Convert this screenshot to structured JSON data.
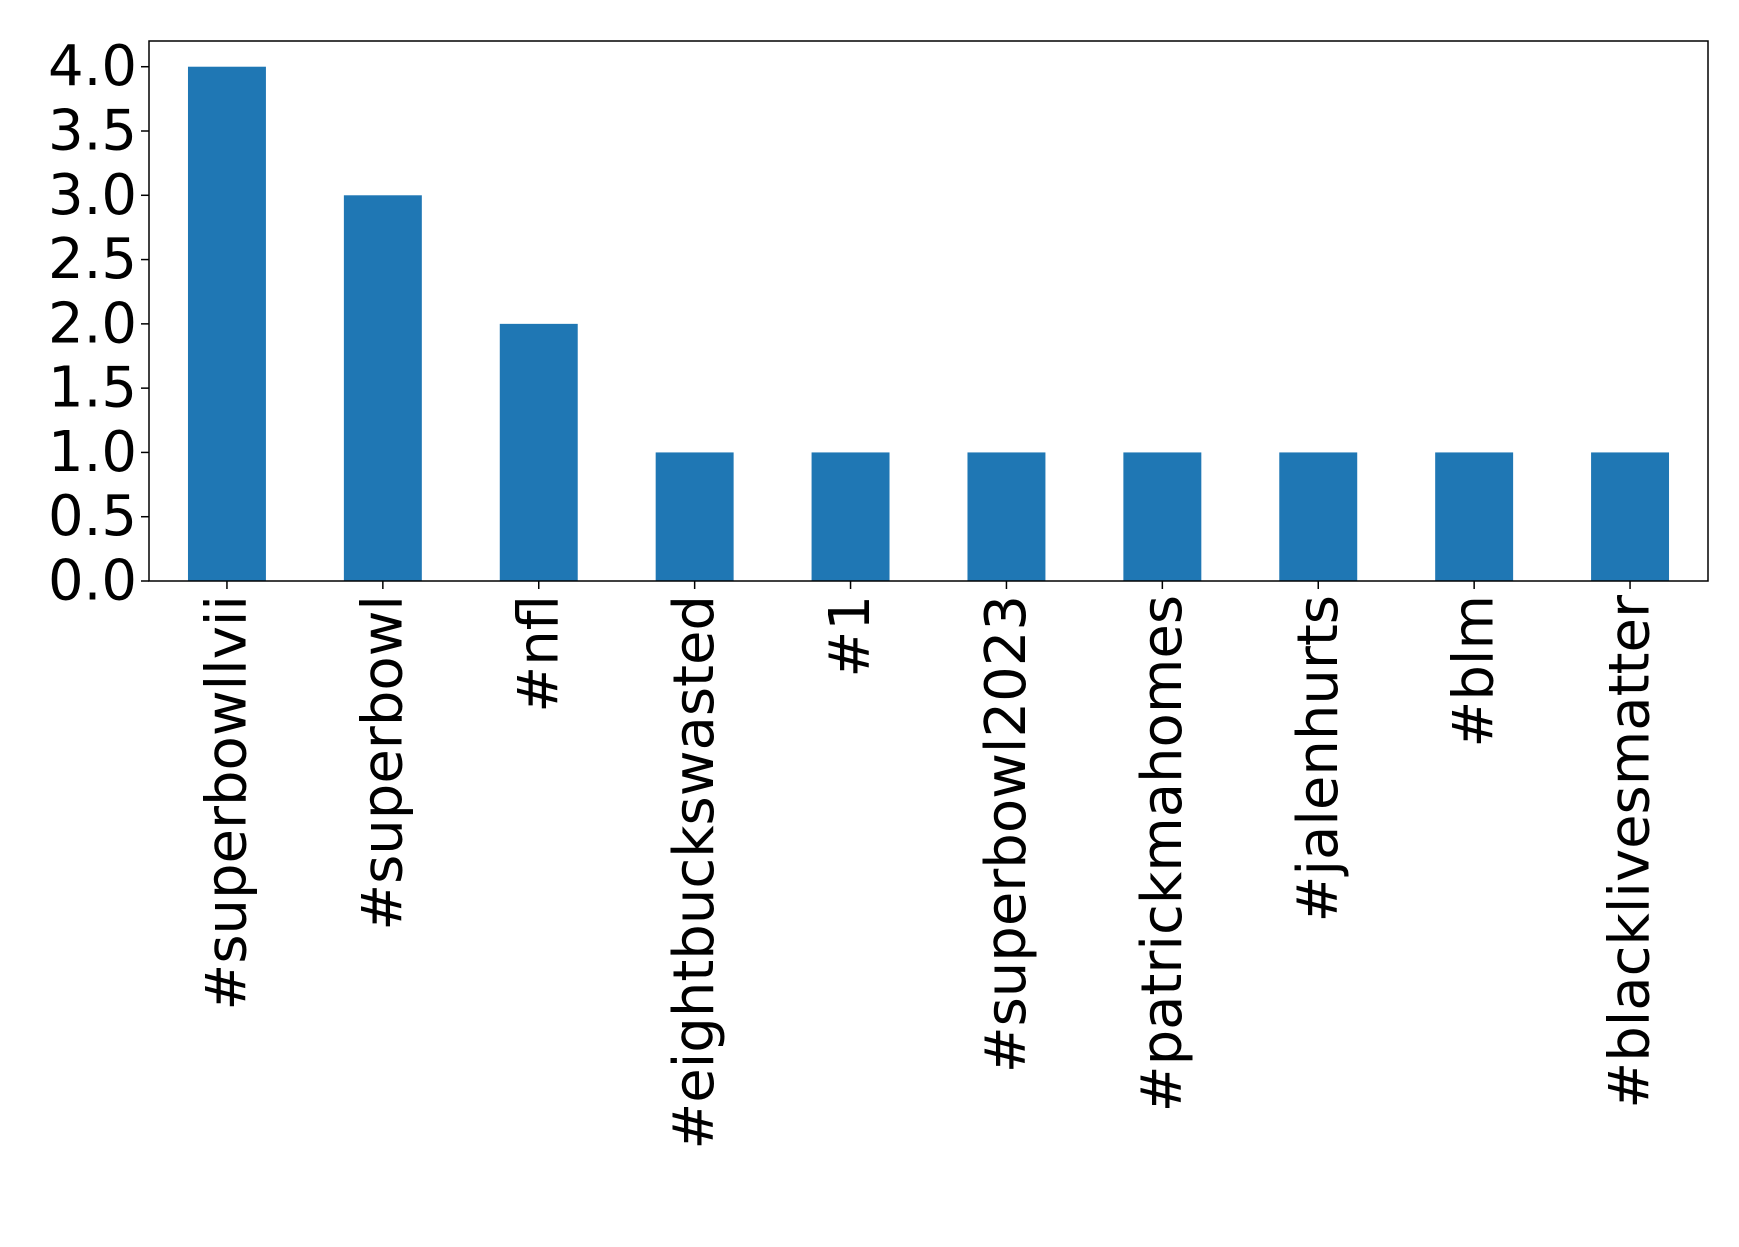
{
  "chart_data": {
    "type": "bar",
    "categories": [
      "#superbowllvii",
      "#superbowl",
      "#nfl",
      "#eightbuckswasted",
      "#1",
      "#superbowl2023",
      "#patrickmahomes",
      "#jalenhurts",
      "#blm",
      "#blacklivesmatter"
    ],
    "values": [
      4,
      3,
      2,
      1,
      1,
      1,
      1,
      1,
      1,
      1
    ],
    "color": "#1f77b4",
    "ylim": [
      0,
      4.2
    ],
    "yticks": [
      {
        "value": 0,
        "label": "0.0"
      },
      {
        "value": 0.5,
        "label": "0.5"
      },
      {
        "value": 1,
        "label": "1.0"
      },
      {
        "value": 1.5,
        "label": "1.5"
      },
      {
        "value": 2,
        "label": "2.0"
      },
      {
        "value": 2.5,
        "label": "2.5"
      },
      {
        "value": 3,
        "label": "3.0"
      },
      {
        "value": 3.5,
        "label": "3.5"
      },
      {
        "value": 4,
        "label": "4.0"
      }
    ],
    "grid": false
  }
}
